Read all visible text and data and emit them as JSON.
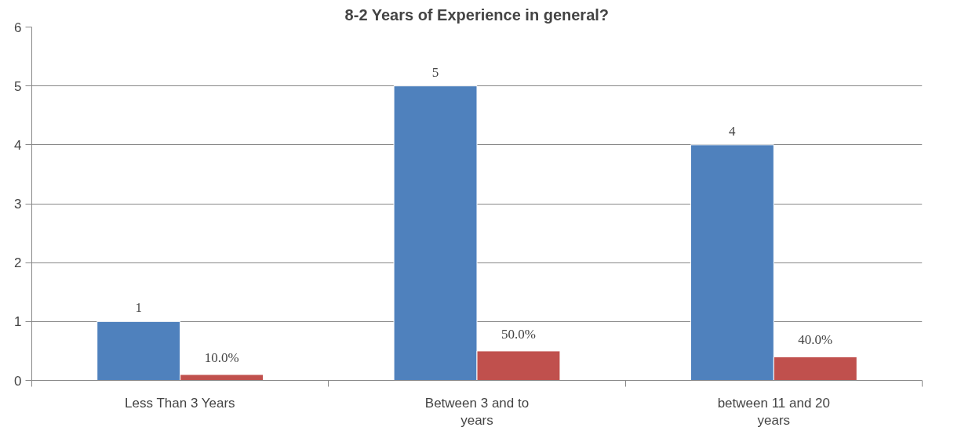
{
  "chart_data": {
    "type": "bar",
    "title": "8-2 Years of Experience in general?",
    "categories": [
      "Less Than 3 Years",
      "Between 3 and to years",
      "between 11 and 20 years"
    ],
    "series": [
      {
        "color": "#4f81bd",
        "values": [
          1,
          5,
          4
        ],
        "value_labels": [
          "1",
          "5",
          "4"
        ]
      },
      {
        "color": "#c0504d",
        "values": [
          0.1,
          0.5,
          0.4
        ],
        "value_labels": [
          "10.0%",
          "50.0%",
          "40.0%"
        ]
      }
    ],
    "ylim": [
      0,
      6
    ],
    "yticks": [
      0,
      1,
      2,
      3,
      4,
      5,
      6
    ],
    "grid": "y"
  }
}
